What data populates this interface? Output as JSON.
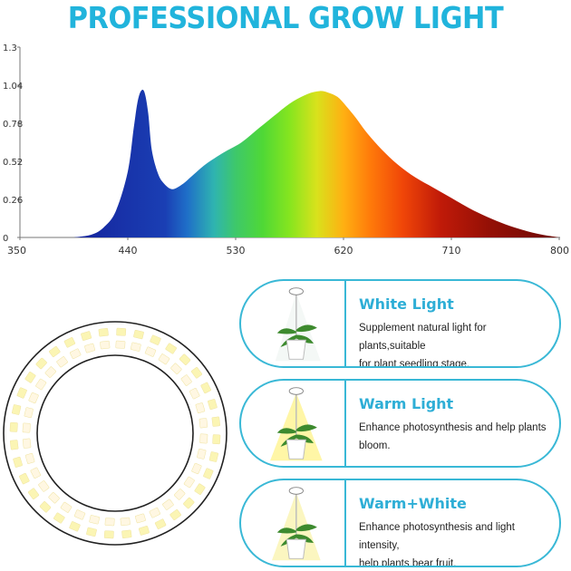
{
  "title": "PROFESSIONAL GROW LIGHT",
  "chart_data": {
    "type": "area",
    "title": "",
    "xlabel": "",
    "ylabel": "",
    "x_ticks": [
      "350",
      "440",
      "530",
      "620",
      "710",
      "800"
    ],
    "y_ticks": [
      "0",
      "0.26",
      "0.52",
      "0.78",
      "1.04",
      "1.3"
    ],
    "xlim": [
      350,
      800
    ],
    "ylim": [
      0,
      1.3
    ],
    "grid": false,
    "series": [
      {
        "x": [
          395,
          410,
          420,
          430,
          440,
          445,
          448,
          451,
          454,
          457,
          460,
          465,
          470,
          477,
          485,
          495,
          505,
          520,
          535,
          550,
          565,
          578,
          590,
          600,
          607,
          615,
          622,
          630,
          640,
          652,
          665,
          680,
          695,
          710,
          725,
          740,
          755,
          770,
          785,
          800
        ],
        "y": [
          0.0,
          0.02,
          0.07,
          0.18,
          0.45,
          0.75,
          0.92,
          1.0,
          0.99,
          0.85,
          0.6,
          0.44,
          0.37,
          0.33,
          0.36,
          0.43,
          0.5,
          0.58,
          0.65,
          0.75,
          0.85,
          0.93,
          0.98,
          1.0,
          0.99,
          0.96,
          0.9,
          0.82,
          0.71,
          0.6,
          0.5,
          0.41,
          0.34,
          0.27,
          0.2,
          0.14,
          0.09,
          0.05,
          0.02,
          0.0
        ]
      }
    ]
  },
  "ring": {
    "led_colors": [
      "#fbf5b4",
      "#fff7e2"
    ]
  },
  "cards": [
    {
      "title": "White Light",
      "desc_lines": [
        "Supplement natural light for plants,suitable",
        "for plant seedling stage."
      ],
      "glow": "#f4f8f6"
    },
    {
      "title": "Warm Light",
      "desc_lines": [
        "Enhance photosynthesis and help plants",
        "bloom."
      ],
      "glow": "#fff6a6"
    },
    {
      "title": "Warm+White",
      "desc_lines": [
        "Enhance photosynthesis and light intensity,",
        "help plants bear fruit."
      ],
      "glow": "#fbf6c0"
    }
  ]
}
